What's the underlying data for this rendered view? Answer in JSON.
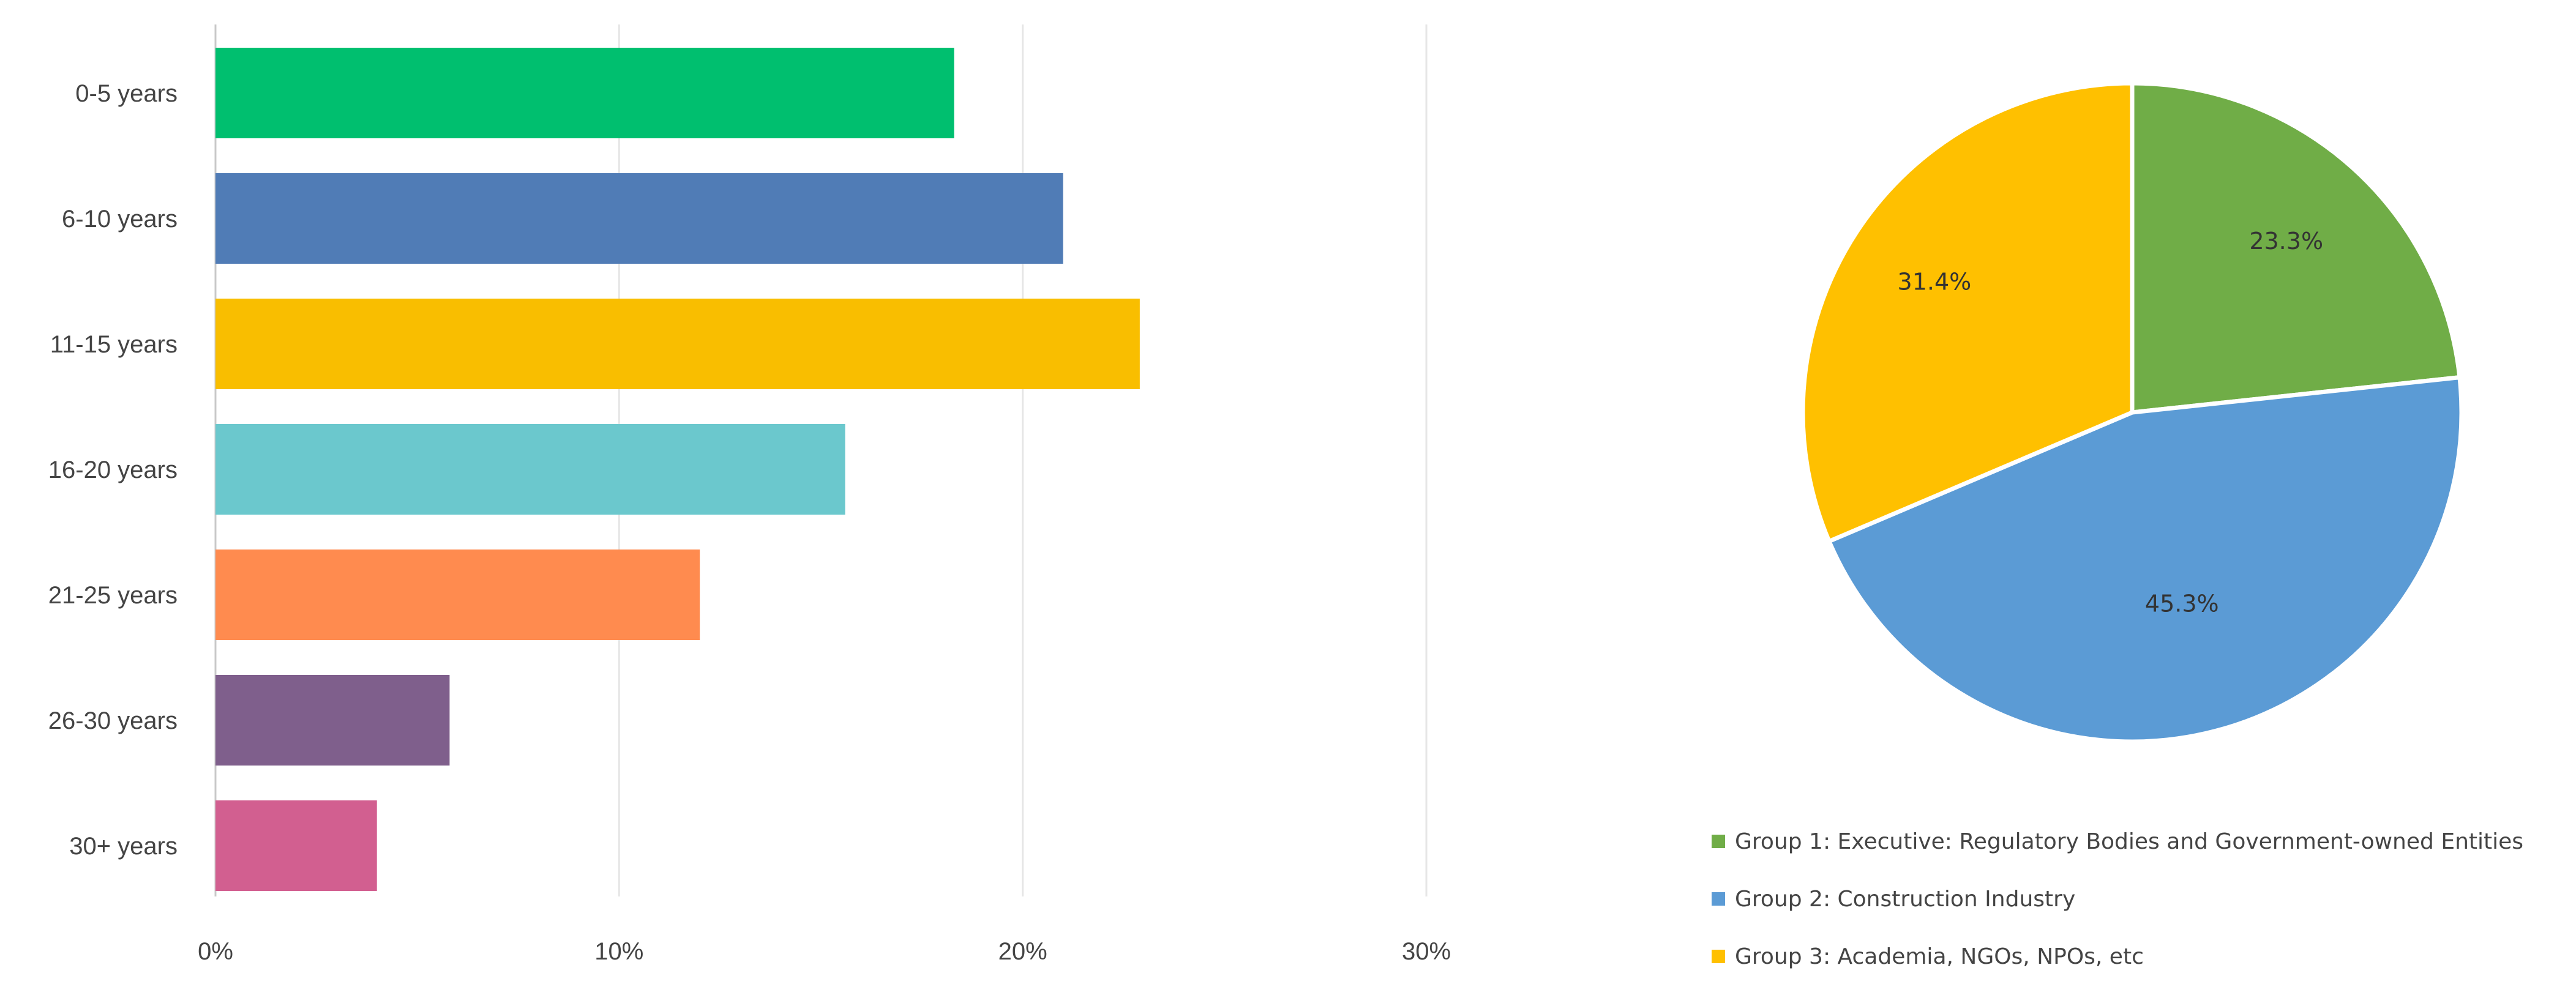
{
  "chart_data": [
    {
      "type": "bar",
      "orientation": "horizontal",
      "categories": [
        "0-5 years",
        "6-10 years",
        "11-15 years",
        "16-20 years",
        "21-25 years",
        "26-30 years",
        "30+ years"
      ],
      "values": [
        18.3,
        21.0,
        22.9,
        15.6,
        12.0,
        5.8,
        4.0
      ],
      "colors": [
        "#00BF6F",
        "#507CB6",
        "#F9BE00",
        "#6BC8CD",
        "#FF8B4F",
        "#7F5F8C",
        "#D25F90"
      ],
      "xticks": [
        "0%",
        "10%",
        "20%",
        "30%"
      ],
      "xlim": [
        0,
        30
      ],
      "grid": true
    },
    {
      "type": "pie",
      "slices": [
        {
          "label": "Group 1: Executive: Regulatory Bodies and Government-owned Entities",
          "value": 23.3,
          "text": "23.3%",
          "color": "#70AD47"
        },
        {
          "label": "Group 2: Construction Industry",
          "value": 45.3,
          "text": "45.3%",
          "color": "#5B9BD5"
        },
        {
          "label": "Group 3: Academia, NGOs, NPOs, etc",
          "value": 31.4,
          "text": "31.4%",
          "color": "#FFC000"
        }
      ],
      "legend_position": "bottom"
    }
  ]
}
